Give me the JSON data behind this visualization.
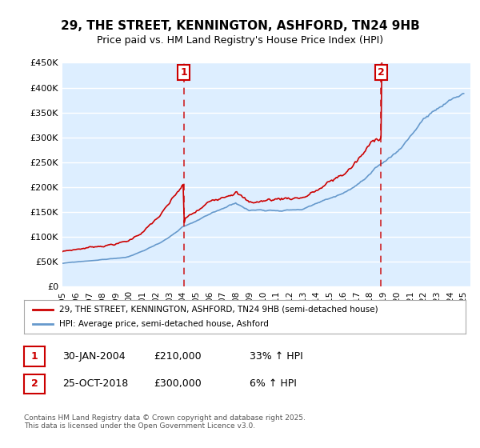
{
  "title_line1": "29, THE STREET, KENNINGTON, ASHFORD, TN24 9HB",
  "title_line2": "Price paid vs. HM Land Registry's House Price Index (HPI)",
  "ylabel_ticks": [
    "£0",
    "£50K",
    "£100K",
    "£150K",
    "£200K",
    "£250K",
    "£300K",
    "£350K",
    "£400K",
    "£450K"
  ],
  "ytick_vals": [
    0,
    50000,
    100000,
    150000,
    200000,
    250000,
    300000,
    350000,
    400000,
    450000
  ],
  "ylim": [
    0,
    450000
  ],
  "xlim_start": 1995.0,
  "xlim_end": 2025.5,
  "vline1_x": 2004.08,
  "vline2_x": 2018.82,
  "red_color": "#cc0000",
  "blue_color": "#6699cc",
  "vline_color": "#cc0000",
  "bg_color": "#ddeeff",
  "grid_color": "#ffffff",
  "legend_label_red": "29, THE STREET, KENNINGTON, ASHFORD, TN24 9HB (semi-detached house)",
  "legend_label_blue": "HPI: Average price, semi-detached house, Ashford",
  "table_row1": [
    "1",
    "30-JAN-2004",
    "£210,000",
    "33% ↑ HPI"
  ],
  "table_row2": [
    "2",
    "25-OCT-2018",
    "£300,000",
    "6% ↑ HPI"
  ],
  "footnote": "Contains HM Land Registry data © Crown copyright and database right 2025.\nThis data is licensed under the Open Government Licence v3.0.",
  "xlabel_years": [
    1995,
    1996,
    1997,
    1998,
    1999,
    2000,
    2001,
    2002,
    2003,
    2004,
    2005,
    2006,
    2007,
    2008,
    2009,
    2010,
    2011,
    2012,
    2013,
    2014,
    2015,
    2016,
    2017,
    2018,
    2019,
    2020,
    2021,
    2022,
    2023,
    2024,
    2025
  ]
}
